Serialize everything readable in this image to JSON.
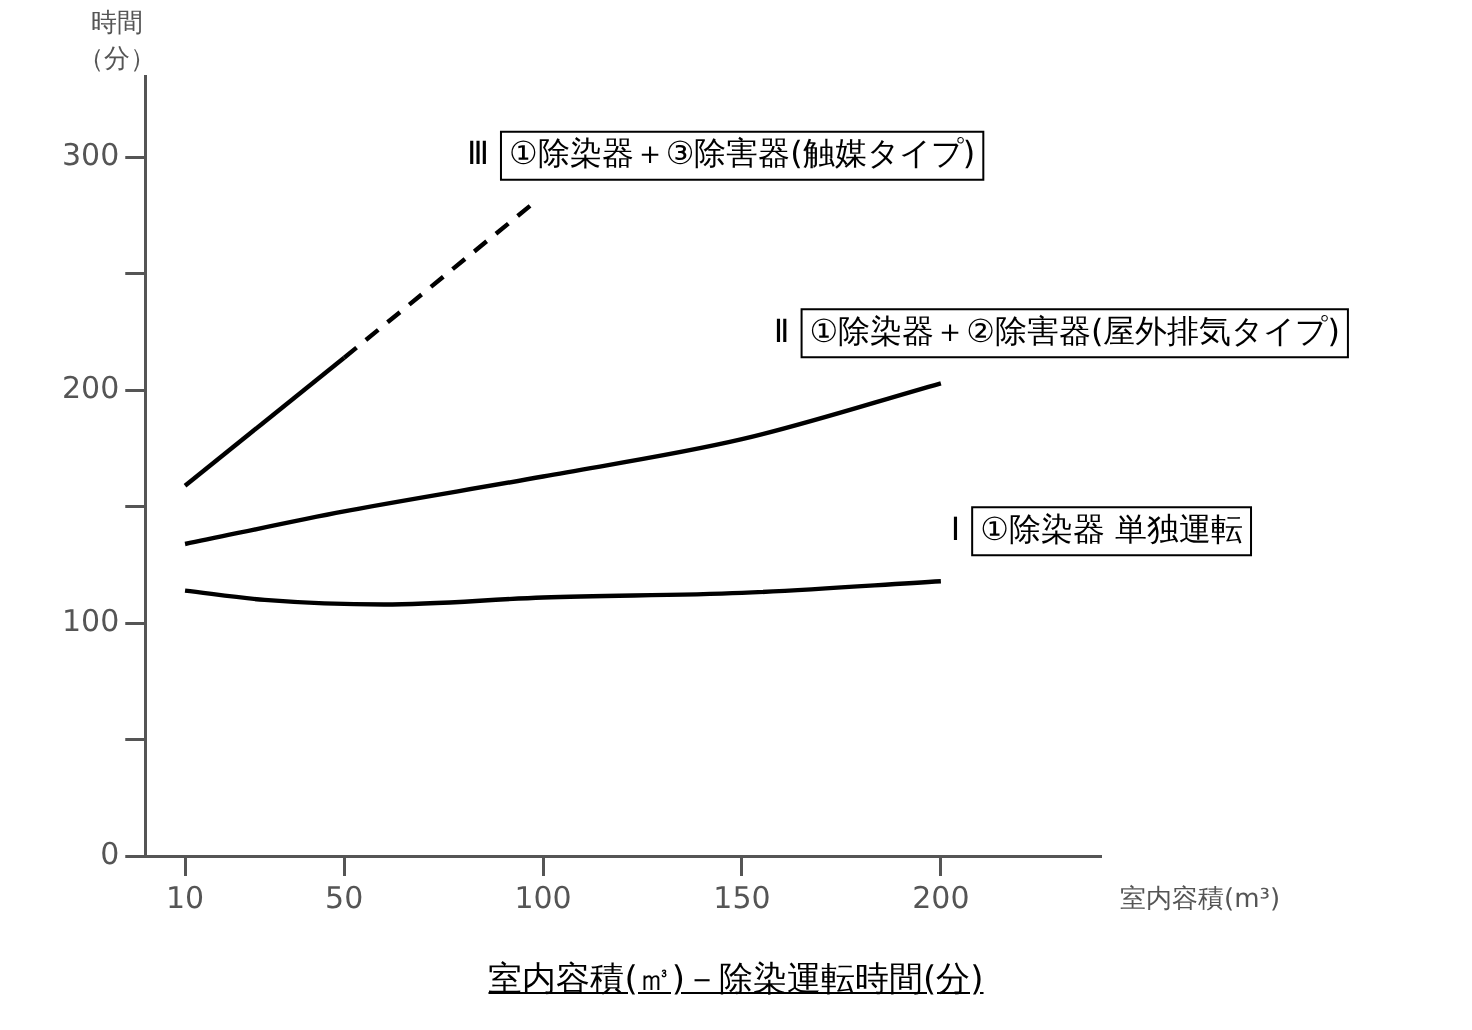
{
  "chart_data": {
    "type": "line",
    "title": "室内容積(㎥)－除染運転時間(分)",
    "xlabel": "室内容積(m³)",
    "ylabel": "時間（分）",
    "xlim": [
      0,
      240
    ],
    "xticks": [
      10,
      50,
      100,
      150,
      200
    ],
    "ylim": [
      0,
      335
    ],
    "yticks": [
      0,
      {
        "value": 50,
        "label": null
      },
      100,
      {
        "value": 150,
        "label": null
      },
      200,
      {
        "value": 250,
        "label": null
      },
      300
    ],
    "grid": false,
    "legend": false,
    "marker": "none",
    "line_style": "solid",
    "series": [
      {
        "name": "Ⅰ ①除染器 単独運転",
        "color": "#000000",
        "x": [
          10,
          30,
          60,
          100,
          150,
          200
        ],
        "values": [
          114,
          110,
          108,
          111,
          113,
          118
        ]
      },
      {
        "name": "Ⅱ ①除染器＋②除害器(屋外排気タイプ)",
        "color": "#000000",
        "x": [
          10,
          50,
          100,
          150,
          200
        ],
        "values": [
          134,
          148,
          163,
          179,
          203
        ]
      },
      {
        "color": "#000000",
        "x": [
          10,
          50
        ],
        "values": [
          159,
          214
        ]
      },
      {
        "name": "Ⅲ ①除染器＋③除害器(触媒タイプ)",
        "color": "#000000",
        "line_style": "dashed",
        "x": [
          50,
          98
        ],
        "values": [
          214,
          281
        ]
      }
    ]
  }
}
